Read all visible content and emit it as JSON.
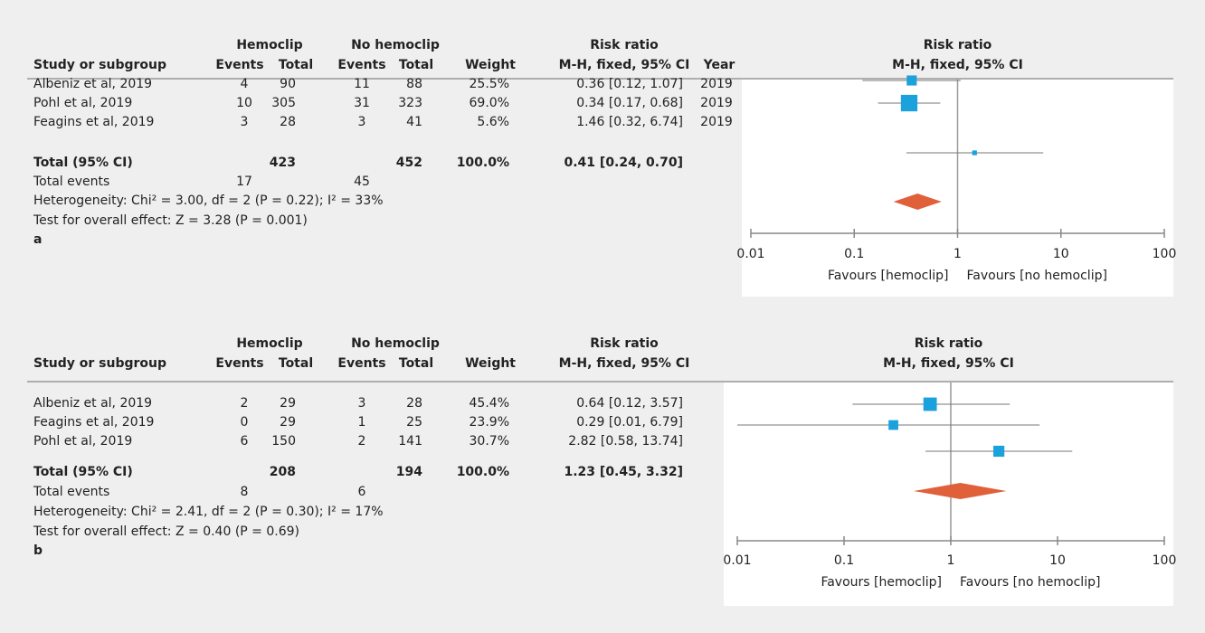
{
  "chart_data": [
    {
      "type": "forest",
      "label": "a",
      "header_groups": [
        "Hemoclip",
        "No hemoclip",
        "Risk ratio"
      ],
      "header": [
        "Study or subgroup",
        "Events",
        "Total",
        "Events",
        "Total",
        "Weight",
        "M-H, fixed, 95% CI",
        "Year"
      ],
      "plot_title": [
        "Risk ratio",
        "M-H, fixed, 95% CI"
      ],
      "studies": [
        {
          "name": "Albeniz et al, 2019",
          "events1": 4,
          "total1": 90,
          "events2": 11,
          "total2": 88,
          "weight": 25.5,
          "weight_label": "25.5%",
          "rr": 0.36,
          "ci_low": 0.12,
          "ci_high": 1.07,
          "rr_label": "0.36 [0.12, 1.07]",
          "year": "2019"
        },
        {
          "name": "Pohl et al, 2019",
          "events1": 10,
          "total1": 305,
          "events2": 31,
          "total2": 323,
          "weight": 69.0,
          "weight_label": "69.0%",
          "rr": 0.34,
          "ci_low": 0.17,
          "ci_high": 0.68,
          "rr_label": "0.34 [0.17, 0.68]",
          "year": "2019"
        },
        {
          "name": "Feagins et al, 2019",
          "events1": 3,
          "total1": 28,
          "events2": 3,
          "total2": 41,
          "weight": 5.6,
          "weight_label": "5.6%",
          "rr": 1.46,
          "ci_low": 0.32,
          "ci_high": 6.74,
          "rr_label": "1.46 [0.32, 6.74]",
          "year": "2019"
        }
      ],
      "total": {
        "label": "Total (95% CI)",
        "total1": 423,
        "total2": 452,
        "weight": 100.0,
        "weight_label": "100.0%",
        "rr": 0.41,
        "ci_low": 0.24,
        "ci_high": 0.7,
        "rr_label": "0.41 [0.24, 0.70]"
      },
      "events": {
        "label": "Total events",
        "events1": 17,
        "events2": 45
      },
      "heterogeneity": "Heterogeneity: Chi² = 3.00, df = 2 (P = 0.22); I² = 33%",
      "overall_effect": "Test for overall effect: Z = 3.28 (P = 0.001)",
      "xscale": "log",
      "xlim": [
        0.01,
        100
      ],
      "xticks": [
        0.01,
        0.1,
        1,
        10,
        100
      ],
      "favours": [
        "Favours [hemoclip]",
        "Favours [no hemoclip]"
      ],
      "colors": {
        "study": "#1ba1dc",
        "total": "#e0603a"
      }
    },
    {
      "type": "forest",
      "label": "b",
      "header_groups": [
        "Hemoclip",
        "No hemoclip",
        "Risk ratio"
      ],
      "header": [
        "Study or subgroup",
        "Events",
        "Total",
        "Events",
        "Total",
        "Weight",
        "M-H, fixed, 95% CI"
      ],
      "plot_title": [
        "Risk ratio",
        "M-H, fixed, 95% CI"
      ],
      "studies": [
        {
          "name": "Albeniz et al, 2019",
          "events1": 2,
          "total1": 29,
          "events2": 3,
          "total2": 28,
          "weight": 45.4,
          "weight_label": "45.4%",
          "rr": 0.64,
          "ci_low": 0.12,
          "ci_high": 3.57,
          "rr_label": "0.64 [0.12, 3.57]"
        },
        {
          "name": "Feagins et al, 2019",
          "events1": 0,
          "total1": 29,
          "events2": 1,
          "total2": 25,
          "weight": 23.9,
          "weight_label": "23.9%",
          "rr": 0.29,
          "ci_low": 0.01,
          "ci_high": 6.79,
          "rr_label": "0.29 [0.01, 6.79]"
        },
        {
          "name": "Pohl et al, 2019",
          "events1": 6,
          "total1": 150,
          "events2": 2,
          "total2": 141,
          "weight": 30.7,
          "weight_label": "30.7%",
          "rr": 2.82,
          "ci_low": 0.58,
          "ci_high": 13.74,
          "rr_label": "2.82 [0.58, 13.74]"
        }
      ],
      "total": {
        "label": "Total (95% CI)",
        "total1": 208,
        "total2": 194,
        "weight": 100.0,
        "weight_label": "100.0%",
        "rr": 1.23,
        "ci_low": 0.45,
        "ci_high": 3.32,
        "rr_label": "1.23 [0.45, 3.32]"
      },
      "events": {
        "label": "Total events",
        "events1": 8,
        "events2": 6
      },
      "heterogeneity": "Heterogeneity: Chi² = 2.41, df = 2 (P = 0.30); I² = 17%",
      "overall_effect": "Test for overall effect: Z = 0.40 (P = 0.69)",
      "xscale": "log",
      "xlim": [
        0.01,
        100
      ],
      "xticks": [
        0.01,
        0.1,
        1,
        10,
        100
      ],
      "favours": [
        "Favours [hemoclip]",
        "Favours [no hemoclip]"
      ],
      "colors": {
        "study": "#1ba1dc",
        "total": "#e0603a"
      }
    }
  ]
}
